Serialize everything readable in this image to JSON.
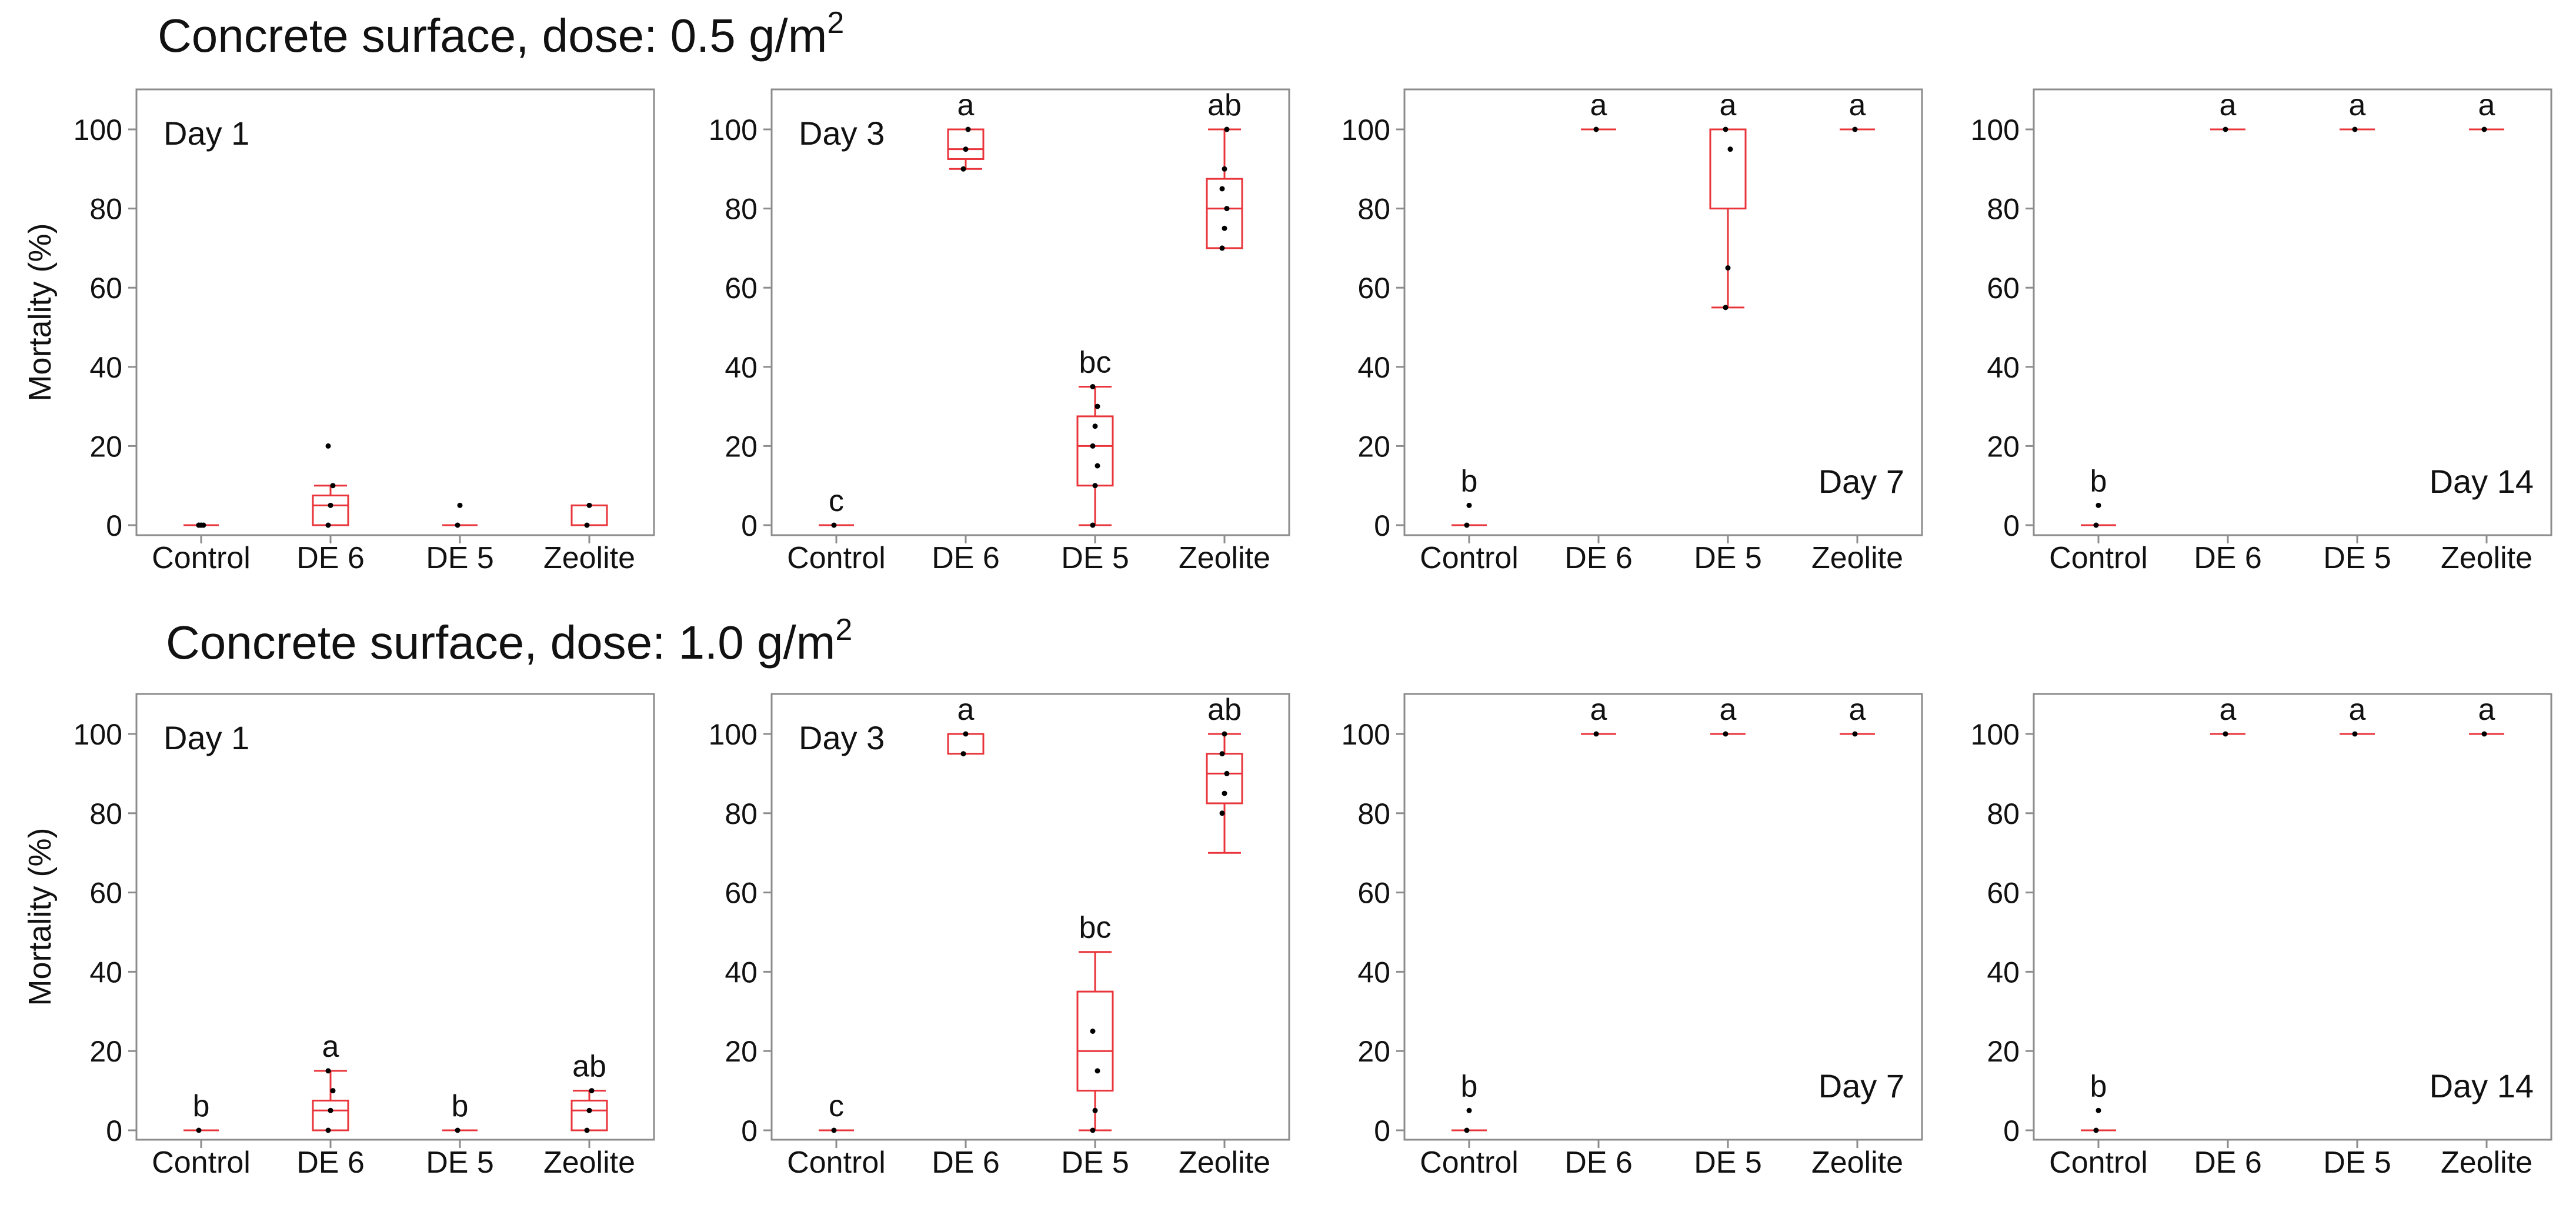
{
  "figure": {
    "rows": [
      {
        "title_text": "Concrete surface, dose: 0.5 g/m",
        "title_sup": "2",
        "ylabel": "Mortality (%)",
        "panels": [
          {
            "day_label": "Day 1",
            "label_pos": "top-left",
            "chart_data": {
              "type": "box",
              "title": "Day 1",
              "categories": [
                "Control",
                "DE 6",
                "DE 5",
                "Zeolite"
              ],
              "ylim": [
                0,
                110
              ],
              "yticks": [
                0,
                20,
                40,
                60,
                80,
                100
              ],
              "boxes": [
                {
                  "category": "Control",
                  "min": 0,
                  "q1": 0,
                  "median": 0,
                  "q3": 0,
                  "max": 0,
                  "points": [
                    0,
                    0,
                    0,
                    0,
                    0
                  ],
                  "letter": ""
                },
                {
                  "category": "DE 6",
                  "min": 0,
                  "q1": 0,
                  "median": 5,
                  "q3": 7.5,
                  "max": 10,
                  "points": [
                    0,
                    5,
                    10,
                    20
                  ],
                  "letter": ""
                },
                {
                  "category": "DE 5",
                  "min": 0,
                  "q1": 0,
                  "median": 0,
                  "q3": 0,
                  "max": 0,
                  "points": [
                    0,
                    5
                  ],
                  "letter": ""
                },
                {
                  "category": "Zeolite",
                  "min": 0,
                  "q1": 0,
                  "median": 0,
                  "q3": 5,
                  "max": 5,
                  "points": [
                    0,
                    5
                  ],
                  "letter": ""
                }
              ]
            }
          },
          {
            "day_label": "Day 3",
            "label_pos": "top-left",
            "chart_data": {
              "type": "box",
              "title": "Day 3",
              "categories": [
                "Control",
                "DE 6",
                "DE 5",
                "Zeolite"
              ],
              "ylim": [
                0,
                110
              ],
              "yticks": [
                0,
                20,
                40,
                60,
                80,
                100
              ],
              "boxes": [
                {
                  "category": "Control",
                  "min": 0,
                  "q1": 0,
                  "median": 0,
                  "q3": 0,
                  "max": 0,
                  "points": [
                    0
                  ],
                  "letter": "c"
                },
                {
                  "category": "DE 6",
                  "min": 90,
                  "q1": 92.5,
                  "median": 95,
                  "q3": 100,
                  "max": 100,
                  "points": [
                    90,
                    95,
                    100
                  ],
                  "letter": "a"
                },
                {
                  "category": "DE 5",
                  "min": 0,
                  "q1": 10,
                  "median": 20,
                  "q3": 27.5,
                  "max": 35,
                  "points": [
                    0,
                    10,
                    15,
                    20,
                    25,
                    30,
                    35
                  ],
                  "letter": "bc"
                },
                {
                  "category": "Zeolite",
                  "min": 70,
                  "q1": 70,
                  "median": 80,
                  "q3": 87.5,
                  "max": 100,
                  "points": [
                    70,
                    75,
                    80,
                    85,
                    90,
                    100
                  ],
                  "letter": "ab"
                }
              ]
            }
          },
          {
            "day_label": "Day 7",
            "label_pos": "bottom-right",
            "chart_data": {
              "type": "box",
              "title": "Day 7",
              "categories": [
                "Control",
                "DE 6",
                "DE 5",
                "Zeolite"
              ],
              "ylim": [
                0,
                110
              ],
              "yticks": [
                0,
                20,
                40,
                60,
                80,
                100
              ],
              "boxes": [
                {
                  "category": "Control",
                  "min": 0,
                  "q1": 0,
                  "median": 0,
                  "q3": 0,
                  "max": 0,
                  "points": [
                    0,
                    5
                  ],
                  "letter": "b"
                },
                {
                  "category": "DE 6",
                  "min": 100,
                  "q1": 100,
                  "median": 100,
                  "q3": 100,
                  "max": 100,
                  "points": [
                    100
                  ],
                  "letter": "a"
                },
                {
                  "category": "DE 5",
                  "min": 55,
                  "q1": 80,
                  "median": 100,
                  "q3": 100,
                  "max": 100,
                  "points": [
                    55,
                    65,
                    95,
                    100
                  ],
                  "letter": "a"
                },
                {
                  "category": "Zeolite",
                  "min": 100,
                  "q1": 100,
                  "median": 100,
                  "q3": 100,
                  "max": 100,
                  "points": [
                    100
                  ],
                  "letter": "a"
                }
              ]
            }
          },
          {
            "day_label": "Day 14",
            "label_pos": "bottom-right",
            "chart_data": {
              "type": "box",
              "title": "Day 14",
              "categories": [
                "Control",
                "DE 6",
                "DE 5",
                "Zeolite"
              ],
              "ylim": [
                0,
                110
              ],
              "yticks": [
                0,
                20,
                40,
                60,
                80,
                100
              ],
              "boxes": [
                {
                  "category": "Control",
                  "min": 0,
                  "q1": 0,
                  "median": 0,
                  "q3": 0,
                  "max": 0,
                  "points": [
                    0,
                    5
                  ],
                  "letter": "b"
                },
                {
                  "category": "DE 6",
                  "min": 100,
                  "q1": 100,
                  "median": 100,
                  "q3": 100,
                  "max": 100,
                  "points": [
                    100
                  ],
                  "letter": "a"
                },
                {
                  "category": "DE 5",
                  "min": 100,
                  "q1": 100,
                  "median": 100,
                  "q3": 100,
                  "max": 100,
                  "points": [
                    100
                  ],
                  "letter": "a"
                },
                {
                  "category": "Zeolite",
                  "min": 100,
                  "q1": 100,
                  "median": 100,
                  "q3": 100,
                  "max": 100,
                  "points": [
                    100
                  ],
                  "letter": "a"
                }
              ]
            }
          }
        ]
      },
      {
        "title_text": "Concrete surface, dose: 1.0 g/m",
        "title_sup": "2",
        "ylabel": "Mortality (%)",
        "panels": [
          {
            "day_label": "Day 1",
            "label_pos": "top-left",
            "chart_data": {
              "type": "box",
              "title": "Day 1",
              "categories": [
                "Control",
                "DE 6",
                "DE 5",
                "Zeolite"
              ],
              "ylim": [
                0,
                110
              ],
              "yticks": [
                0,
                20,
                40,
                60,
                80,
                100
              ],
              "boxes": [
                {
                  "category": "Control",
                  "min": 0,
                  "q1": 0,
                  "median": 0,
                  "q3": 0,
                  "max": 0,
                  "points": [
                    0
                  ],
                  "letter": "b"
                },
                {
                  "category": "DE 6",
                  "min": 0,
                  "q1": 0,
                  "median": 5,
                  "q3": 7.5,
                  "max": 15,
                  "points": [
                    0,
                    5,
                    10,
                    15
                  ],
                  "letter": "a"
                },
                {
                  "category": "DE 5",
                  "min": 0,
                  "q1": 0,
                  "median": 0,
                  "q3": 0,
                  "max": 0,
                  "points": [
                    0
                  ],
                  "letter": "b"
                },
                {
                  "category": "Zeolite",
                  "min": 0,
                  "q1": 0,
                  "median": 5,
                  "q3": 7.5,
                  "max": 10,
                  "points": [
                    0,
                    5,
                    10
                  ],
                  "letter": "ab"
                }
              ]
            }
          },
          {
            "day_label": "Day 3",
            "label_pos": "top-left",
            "chart_data": {
              "type": "box",
              "title": "Day 3",
              "categories": [
                "Control",
                "DE 6",
                "DE 5",
                "Zeolite"
              ],
              "ylim": [
                0,
                110
              ],
              "yticks": [
                0,
                20,
                40,
                60,
                80,
                100
              ],
              "boxes": [
                {
                  "category": "Control",
                  "min": 0,
                  "q1": 0,
                  "median": 0,
                  "q3": 0,
                  "max": 0,
                  "points": [
                    0
                  ],
                  "letter": "c"
                },
                {
                  "category": "DE 6",
                  "min": 95,
                  "q1": 95,
                  "median": 100,
                  "q3": 100,
                  "max": 100,
                  "points": [
                    95,
                    100
                  ],
                  "letter": "a"
                },
                {
                  "category": "DE 5",
                  "min": 0,
                  "q1": 10,
                  "median": 20,
                  "q3": 35,
                  "max": 45,
                  "points": [
                    0,
                    5,
                    15,
                    25
                  ],
                  "letter": "bc"
                },
                {
                  "category": "Zeolite",
                  "min": 70,
                  "q1": 82.5,
                  "median": 90,
                  "q3": 95,
                  "max": 100,
                  "points": [
                    80,
                    85,
                    90,
                    95,
                    100
                  ],
                  "letter": "ab"
                }
              ]
            }
          },
          {
            "day_label": "Day 7",
            "label_pos": "bottom-right",
            "chart_data": {
              "type": "box",
              "title": "Day 7",
              "categories": [
                "Control",
                "DE 6",
                "DE 5",
                "Zeolite"
              ],
              "ylim": [
                0,
                110
              ],
              "yticks": [
                0,
                20,
                40,
                60,
                80,
                100
              ],
              "boxes": [
                {
                  "category": "Control",
                  "min": 0,
                  "q1": 0,
                  "median": 0,
                  "q3": 0,
                  "max": 0,
                  "points": [
                    0,
                    5
                  ],
                  "letter": "b"
                },
                {
                  "category": "DE 6",
                  "min": 100,
                  "q1": 100,
                  "median": 100,
                  "q3": 100,
                  "max": 100,
                  "points": [
                    100
                  ],
                  "letter": "a"
                },
                {
                  "category": "DE 5",
                  "min": 100,
                  "q1": 100,
                  "median": 100,
                  "q3": 100,
                  "max": 100,
                  "points": [
                    100
                  ],
                  "letter": "a"
                },
                {
                  "category": "Zeolite",
                  "min": 100,
                  "q1": 100,
                  "median": 100,
                  "q3": 100,
                  "max": 100,
                  "points": [
                    100
                  ],
                  "letter": "a"
                }
              ]
            }
          },
          {
            "day_label": "Day 14",
            "label_pos": "bottom-right",
            "chart_data": {
              "type": "box",
              "title": "Day 14",
              "categories": [
                "Control",
                "DE 6",
                "DE 5",
                "Zeolite"
              ],
              "ylim": [
                0,
                110
              ],
              "yticks": [
                0,
                20,
                40,
                60,
                80,
                100
              ],
              "boxes": [
                {
                  "category": "Control",
                  "min": 0,
                  "q1": 0,
                  "median": 0,
                  "q3": 0,
                  "max": 0,
                  "points": [
                    0,
                    5
                  ],
                  "letter": "b"
                },
                {
                  "category": "DE 6",
                  "min": 100,
                  "q1": 100,
                  "median": 100,
                  "q3": 100,
                  "max": 100,
                  "points": [
                    100
                  ],
                  "letter": "a"
                },
                {
                  "category": "DE 5",
                  "min": 100,
                  "q1": 100,
                  "median": 100,
                  "q3": 100,
                  "max": 100,
                  "points": [
                    100
                  ],
                  "letter": "a"
                },
                {
                  "category": "Zeolite",
                  "min": 100,
                  "q1": 100,
                  "median": 100,
                  "q3": 100,
                  "max": 100,
                  "points": [
                    100
                  ],
                  "letter": "a"
                }
              ]
            }
          }
        ]
      }
    ],
    "colors": {
      "box": "#e8343a",
      "point": "#000000",
      "frame": "#8c8c8c",
      "text": "#111111"
    }
  }
}
